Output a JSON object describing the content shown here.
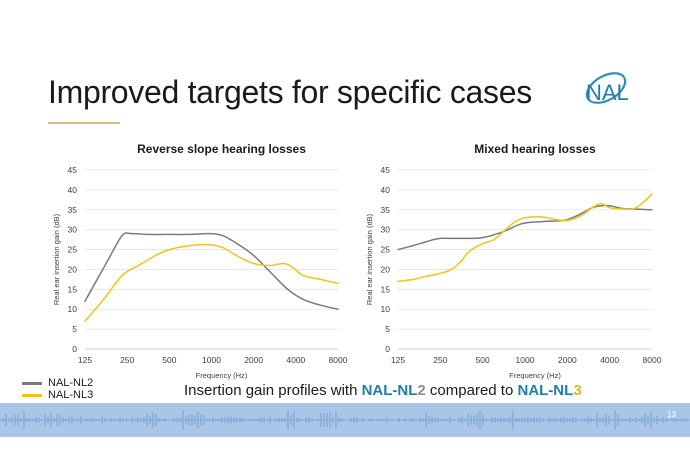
{
  "slide": {
    "title": "Improved targets for specific cases",
    "page_number": "13",
    "logo_text": "NAL"
  },
  "colors": {
    "nl2": "#7a7a7a",
    "nl3": "#f0c419",
    "accent_blue": "#1f7ea8",
    "band": "#a9c6e8"
  },
  "legend": {
    "items": [
      {
        "label": "NAL-NL2",
        "color": "#7a7a7a"
      },
      {
        "label": "NAL-NL3",
        "color": "#f0c419"
      }
    ]
  },
  "caption": {
    "prefix": "Insertion gain profiles with ",
    "nl2_a": "NAL-NL",
    "nl2_b": "2",
    "middle": " compared to ",
    "nl3_a": "NAL-NL",
    "nl3_b": "3"
  },
  "chart_data": [
    {
      "type": "line",
      "title": "Reverse slope hearing losses",
      "xlabel": "Frequency (Hz)",
      "ylabel": "Real ear insertion gain (dB)",
      "x_scale": "log",
      "xticks": [
        125,
        250,
        500,
        1000,
        2000,
        4000,
        8000
      ],
      "xtick_labels": [
        "125",
        "250",
        "500",
        "1000",
        "2000",
        "4000",
        "8000"
      ],
      "ylim": [
        0,
        45
      ],
      "yticks": [
        0,
        5,
        10,
        15,
        20,
        25,
        30,
        35,
        40,
        45
      ],
      "series": [
        {
          "name": "NAL-NL2",
          "x": [
            125,
            180,
            230,
            270,
            350,
            500,
            700,
            950,
            1200,
            1600,
            2000,
            2600,
            3500,
            4500,
            6000,
            8000
          ],
          "values": [
            12,
            22,
            28.5,
            29,
            28.8,
            28.8,
            28.8,
            29,
            28.5,
            26,
            23.5,
            19.5,
            15,
            12.5,
            11,
            10
          ]
        },
        {
          "name": "NAL-NL3",
          "x": [
            125,
            170,
            230,
            300,
            400,
            500,
            700,
            950,
            1200,
            1600,
            2000,
            2600,
            3300,
            3800,
            4500,
            6000,
            8000
          ],
          "values": [
            7,
            12.5,
            18.5,
            21,
            23.5,
            25,
            26,
            26.2,
            25.5,
            23,
            21.5,
            21,
            21.5,
            20.5,
            18.5,
            17.5,
            16.5
          ]
        }
      ]
    },
    {
      "type": "line",
      "title": "Mixed hearing losses",
      "xlabel": "Frequency (Hz)",
      "ylabel": "Real ear insertion gain (dB)",
      "x_scale": "log",
      "xticks": [
        125,
        250,
        500,
        1000,
        2000,
        4000,
        8000
      ],
      "xtick_labels": [
        "125",
        "250",
        "500",
        "1000",
        "2000",
        "4000",
        "8000"
      ],
      "ylim": [
        0,
        45
      ],
      "yticks": [
        0,
        5,
        10,
        15,
        20,
        25,
        30,
        35,
        40,
        45
      ],
      "series": [
        {
          "name": "NAL-NL2",
          "x": [
            125,
            160,
            200,
            250,
            350,
            500,
            700,
            950,
            1300,
            1700,
            2000,
            2500,
            3000,
            3500,
            4000,
            5000,
            6000,
            8000
          ],
          "values": [
            25,
            26,
            27,
            27.8,
            27.8,
            28,
            29.5,
            31.5,
            32,
            32.2,
            32.5,
            34,
            35.5,
            36,
            36,
            35.3,
            35.2,
            35
          ]
        },
        {
          "name": "NAL-NL3",
          "x": [
            125,
            160,
            200,
            250,
            300,
            350,
            400,
            500,
            600,
            700,
            850,
            1000,
            1300,
            1700,
            2000,
            2500,
            3000,
            3500,
            4000,
            5000,
            6000,
            7000,
            8000
          ],
          "values": [
            17,
            17.5,
            18.3,
            19,
            20,
            22,
            24.5,
            26.5,
            27.5,
            29.5,
            32,
            33,
            33.2,
            32.5,
            32.3,
            33.5,
            35.5,
            36.5,
            35.5,
            35.2,
            35.3,
            37,
            39
          ]
        }
      ]
    }
  ]
}
